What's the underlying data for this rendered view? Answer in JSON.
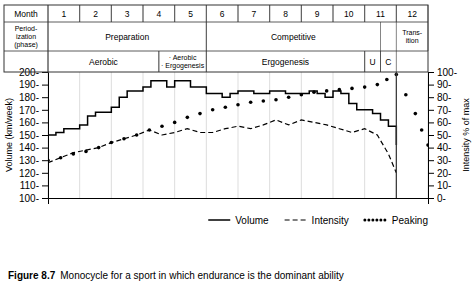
{
  "chart_data": {
    "type": "line",
    "title": "Figure 8.7",
    "subtitle": "Monocycle for a sport in which endurance is the dominant ability",
    "xlim": [
      0,
      12
    ],
    "xticks": [
      0,
      1,
      2,
      3,
      4,
      5,
      6,
      7,
      8,
      9,
      10,
      11,
      12
    ],
    "tick_labels": "y",
    "grid": "x",
    "ylim": [
      100,
      200
    ],
    "yticks": [
      {
        "value": 100,
        "label": "100-"
      },
      {
        "value": 110,
        "label": "110-"
      },
      {
        "value": 120,
        "label": "120-"
      },
      {
        "value": 130,
        "label": "130-"
      },
      {
        "value": 140,
        "label": "140-"
      },
      {
        "value": 150,
        "label": "150-"
      },
      {
        "value": 160,
        "label": "160-"
      },
      {
        "value": 170,
        "label": "170-"
      },
      {
        "value": 180,
        "label": "180-"
      },
      {
        "value": 190,
        "label": "190-"
      },
      {
        "value": 200,
        "label": "200-"
      }
    ],
    "ylabel": "Volume (km/week)",
    "y2lim": [
      0,
      100
    ],
    "y2ticks": [
      {
        "value": 0,
        "label": "0-"
      },
      {
        "value": 10,
        "label": "10-"
      },
      {
        "value": 20,
        "label": "20-"
      },
      {
        "value": 30,
        "label": "30-"
      },
      {
        "value": 40,
        "label": "40-"
      },
      {
        "value": 50,
        "label": "50-"
      },
      {
        "value": 60,
        "label": "60-"
      },
      {
        "value": 70,
        "label": "70-"
      },
      {
        "value": 80,
        "label": "80-"
      },
      {
        "value": 90,
        "label": "90-"
      },
      {
        "value": 100,
        "label": "100-"
      }
    ],
    "y2label": "Intensity % of max",
    "legend": "lower right",
    "series": [
      {
        "name": "Volume",
        "type": "step",
        "line_style": "solid",
        "color": "black",
        "axis": "y2",
        "x": [
          0,
          0.25,
          0.5,
          0.75,
          1.0,
          1.25,
          1.5,
          1.75,
          2.0,
          2.25,
          2.5,
          2.75,
          3.0,
          3.25,
          3.5,
          3.75,
          4.0,
          4.25,
          4.5,
          4.75,
          5.0,
          5.25,
          5.5,
          5.75,
          6.0,
          6.25,
          6.5,
          6.75,
          7.0,
          7.25,
          7.5,
          7.75,
          8.0,
          8.25,
          8.5,
          8.75,
          9.0,
          9.25,
          9.5,
          9.75,
          10.0,
          10.25,
          10.5,
          10.75,
          11.0
        ],
        "values": [
          50,
          52,
          55,
          55,
          58,
          65,
          68,
          68,
          72,
          80,
          85,
          85,
          88,
          93,
          93,
          88,
          93,
          93,
          88,
          88,
          83,
          83,
          80,
          83,
          85,
          85,
          83,
          83,
          85,
          85,
          83,
          83,
          83,
          85,
          83,
          80,
          85,
          83,
          75,
          70,
          70,
          67,
          62,
          57,
          42
        ]
      },
      {
        "name": "Intensity",
        "type": "line",
        "line_style": "dashed",
        "color": "black",
        "axis": "y2",
        "x": [
          0,
          0.4,
          0.8,
          1.2,
          1.6,
          2.0,
          2.4,
          2.8,
          3.2,
          3.6,
          4.0,
          4.4,
          4.8,
          5.2,
          5.6,
          6.0,
          6.4,
          6.8,
          7.2,
          7.6,
          8.0,
          8.4,
          8.8,
          9.2,
          9.6,
          10.0,
          10.4,
          10.75,
          11.0
        ],
        "values": [
          28,
          32,
          36,
          38,
          40,
          44,
          47,
          50,
          54,
          50,
          52,
          55,
          52,
          52,
          55,
          57,
          55,
          58,
          62,
          58,
          62,
          60,
          58,
          55,
          52,
          55,
          50,
          35,
          20
        ]
      },
      {
        "name": "Peaking",
        "type": "scatter",
        "marker": "circle",
        "color": "black",
        "axis": "y2",
        "x": [
          0,
          0.4,
          0.8,
          1.2,
          1.6,
          2.0,
          2.4,
          2.8,
          3.2,
          3.6,
          4.0,
          4.4,
          4.8,
          5.2,
          5.6,
          6.0,
          6.4,
          6.8,
          7.2,
          7.6,
          8.0,
          8.4,
          8.8,
          9.2,
          9.6,
          10.0,
          10.4,
          10.7,
          11.0,
          11.3,
          11.6,
          11.8,
          12.0
        ],
        "values": [
          30,
          32,
          35,
          37,
          40,
          44,
          47,
          50,
          54,
          57,
          60,
          64,
          67,
          70,
          72,
          74,
          76,
          77,
          78,
          80,
          82,
          84,
          85,
          86,
          87,
          88,
          90,
          94,
          98,
          82,
          67,
          54,
          42
        ]
      }
    ],
    "annotations": [
      {
        "type": "header_row",
        "row_label": "Month",
        "cells": [
          {
            "text": "1",
            "start": 0,
            "end": 1
          },
          {
            "text": "2",
            "start": 1,
            "end": 2
          },
          {
            "text": "3",
            "start": 2,
            "end": 3
          },
          {
            "text": "4",
            "start": 3,
            "end": 4
          },
          {
            "text": "5",
            "start": 4,
            "end": 5
          },
          {
            "text": "6",
            "start": 5,
            "end": 6
          },
          {
            "text": "7",
            "start": 6,
            "end": 7
          },
          {
            "text": "8",
            "start": 7,
            "end": 8
          },
          {
            "text": "9",
            "start": 8,
            "end": 9
          },
          {
            "text": "10",
            "start": 9,
            "end": 10
          },
          {
            "text": "11",
            "start": 10,
            "end": 11
          },
          {
            "text": "12",
            "start": 11,
            "end": 12
          }
        ]
      },
      {
        "type": "header_row",
        "row_label": "Period-\nization\n(phase)",
        "cells": [
          {
            "text": "Preparation",
            "start": 0,
            "end": 5
          },
          {
            "text": "Competitive",
            "start": 5,
            "end": 10.5
          },
          {
            "text": "Trans-\nition",
            "start": 11,
            "end": 12
          }
        ]
      },
      {
        "type": "header_row",
        "cells": [
          {
            "text": "Aerobic",
            "start": 0,
            "end": 3.5
          },
          {
            "text": "· Aerobic\n· Ergogenesis",
            "start": 3.5,
            "end": 5
          },
          {
            "text": "Ergogenesis",
            "start": 5,
            "end": 10
          },
          {
            "text": "U",
            "start": 10,
            "end": 10.5
          },
          {
            "text": "C",
            "start": 10.5,
            "end": 11
          }
        ]
      },
      {
        "type": "vline",
        "x": 11
      }
    ]
  }
}
